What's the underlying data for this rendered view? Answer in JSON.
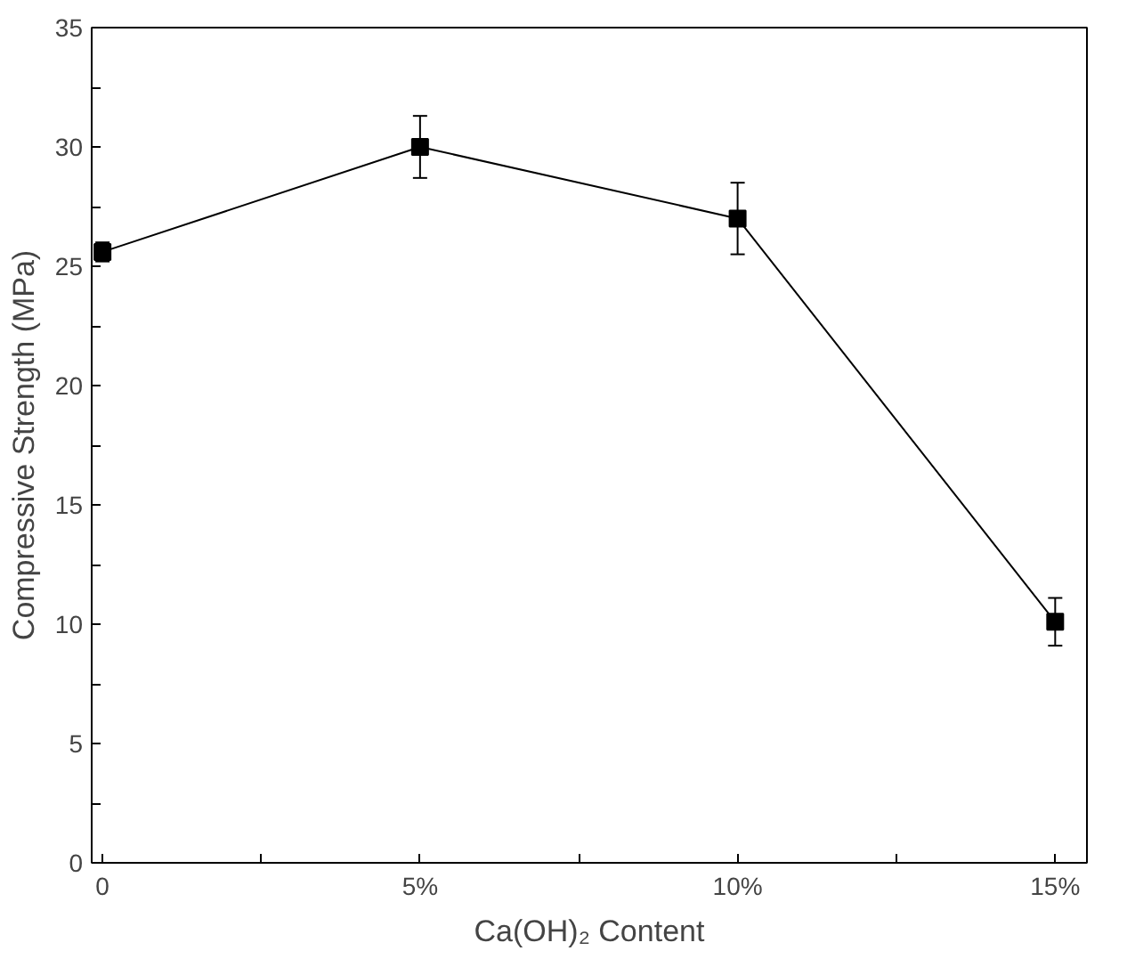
{
  "chart_data": {
    "type": "line",
    "xlabel": "Ca(OH)₂ Content",
    "ylabel": "Compressive Strength (MPa)",
    "x": [
      0,
      5,
      10,
      15
    ],
    "series": [
      {
        "color": "#000000",
        "values": [
          25.6,
          30.0,
          27.0,
          10.1
        ],
        "errors": [
          0.4,
          1.3,
          1.5,
          1.0
        ]
      }
    ],
    "xlim": [
      -0.17,
      15.5
    ],
    "ylim": [
      0,
      35
    ],
    "xticks": [
      0,
      {
        "value": 2.5,
        "label": null
      },
      {
        "value": 5,
        "label": "5%"
      },
      {
        "value": 7.5,
        "label": null
      },
      {
        "value": 10,
        "label": "10%"
      },
      {
        "value": 12.5,
        "label": null
      },
      {
        "value": 15,
        "label": "15%"
      }
    ],
    "yticks": [
      0,
      {
        "value": 2.5,
        "label": null
      },
      5,
      {
        "value": 7.5,
        "label": null
      },
      10,
      {
        "value": 12.5,
        "label": null
      },
      15,
      {
        "value": 17.5,
        "label": null
      },
      20,
      {
        "value": 22.5,
        "label": null
      },
      25,
      {
        "value": 27.5,
        "label": null
      },
      30,
      {
        "value": 32.5,
        "label": null
      },
      35
    ],
    "grid": false,
    "marker": "square",
    "line_style": "solid"
  }
}
